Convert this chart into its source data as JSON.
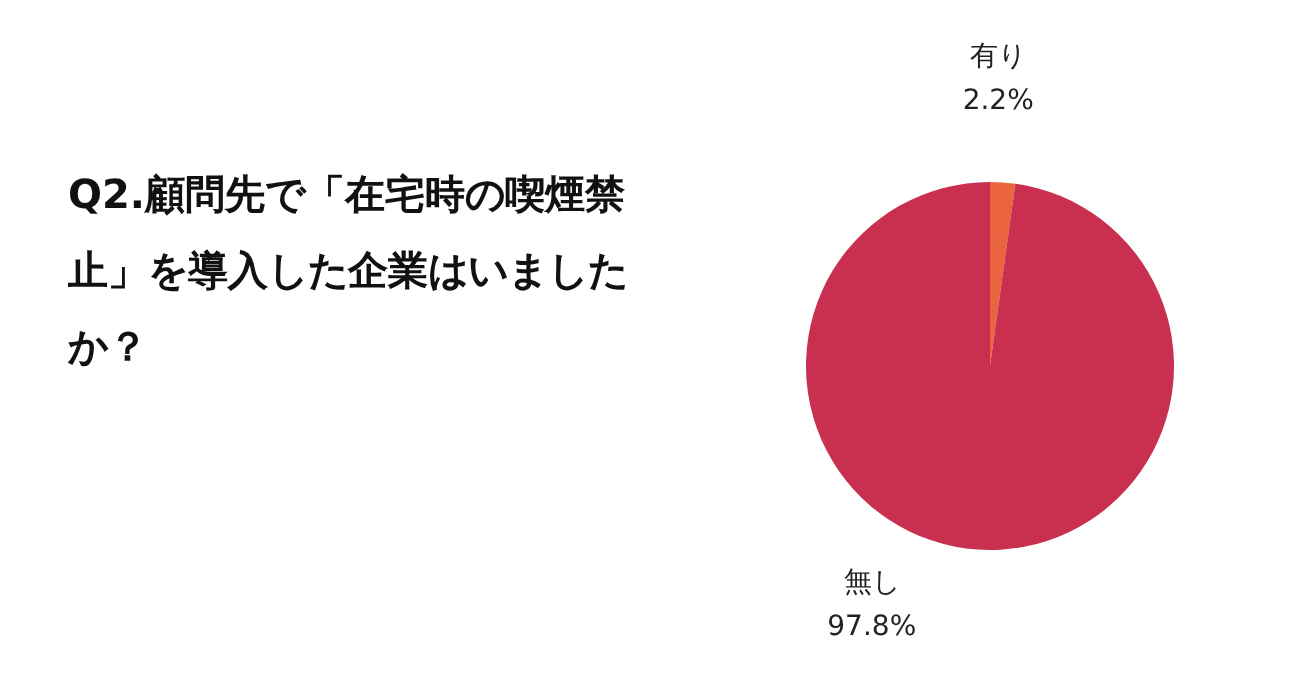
{
  "chart_data": {
    "type": "pie",
    "title": "Q2.顧問先で「在宅時の喫煙禁止」を導入した企業はいましたか？",
    "categories": [
      "有り",
      "無し"
    ],
    "values": [
      2.2,
      97.8
    ],
    "colors": [
      "#e9643f",
      "#c9304f"
    ],
    "value_labels": [
      "2.2%",
      "97.8%"
    ],
    "legend": false
  }
}
